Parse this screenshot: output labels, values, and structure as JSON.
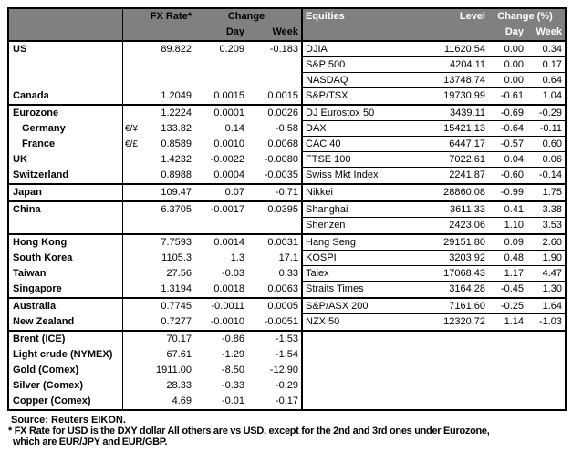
{
  "colors": {
    "header_bg": "#808080",
    "header_text_fx": "#000000",
    "header_text_equities": "#ffffff",
    "border": "#000000",
    "body_text": "#000000",
    "background": "#ffffff"
  },
  "fx_panel": {
    "header": {
      "rate": "FX Rate*",
      "change": "Change",
      "day": "Day",
      "week": "Week"
    },
    "sections": [
      {
        "rows": [
          {
            "label": "US",
            "pair": "",
            "rate": "89.822",
            "day": "0.209",
            "week": "-0.183"
          },
          {
            "label": "",
            "pair": "",
            "rate": "",
            "day": "",
            "week": ""
          },
          {
            "label": "",
            "pair": "",
            "rate": "",
            "day": "",
            "week": ""
          },
          {
            "label": "Canada",
            "pair": "",
            "rate": "1.2049",
            "day": "0.0015",
            "week": "0.0015"
          }
        ]
      },
      {
        "rows": [
          {
            "label": "Eurozone",
            "pair": "",
            "rate": "1.2224",
            "day": "0.0001",
            "week": "0.0026"
          },
          {
            "label": "Germany",
            "indent": true,
            "pair": "€/¥",
            "rate": "133.82",
            "day": "0.14",
            "week": "-0.58"
          },
          {
            "label": "France",
            "indent": true,
            "pair": "€/£",
            "rate": "0.8589",
            "day": "0.0010",
            "week": "0.0068"
          },
          {
            "label": "UK",
            "pair": "",
            "rate": "1.4232",
            "day": "-0.0022",
            "week": "-0.0080"
          },
          {
            "label": "Switzerland",
            "pair": "",
            "rate": "0.8988",
            "day": "0.0004",
            "week": "-0.0035"
          }
        ]
      },
      {
        "rows": [
          {
            "label": "Japan",
            "pair": "",
            "rate": "109.47",
            "day": "0.07",
            "week": "-0.71"
          }
        ]
      },
      {
        "rows": [
          {
            "label": "China",
            "pair": "",
            "rate": "6.3705",
            "day": "-0.0017",
            "week": "0.0395"
          },
          {
            "label": "",
            "pair": "",
            "rate": "",
            "day": "",
            "week": ""
          }
        ]
      },
      {
        "rows": [
          {
            "label": "Hong Kong",
            "pair": "",
            "rate": "7.7593",
            "day": "0.0014",
            "week": "0.0031"
          },
          {
            "label": "South Korea",
            "pair": "",
            "rate": "1105.3",
            "day": "1.3",
            "week": "17.1"
          },
          {
            "label": "Taiwan",
            "pair": "",
            "rate": "27.56",
            "day": "-0.03",
            "week": "0.33"
          },
          {
            "label": "Singapore",
            "pair": "",
            "rate": "1.3194",
            "day": "0.0018",
            "week": "0.0063"
          }
        ]
      },
      {
        "rows": [
          {
            "label": "Australia",
            "pair": "",
            "rate": "0.7745",
            "day": "-0.0011",
            "week": "0.0005"
          },
          {
            "label": "New Zealand",
            "pair": "",
            "rate": "0.7277",
            "day": "-0.0010",
            "week": "-0.0051"
          }
        ]
      },
      {
        "rows": [
          {
            "label": "Brent (ICE)",
            "pair": "",
            "rate": "70.17",
            "day": "-0.86",
            "week": "-1.53"
          },
          {
            "label": "Light crude (NYMEX)",
            "pair": "",
            "rate": "67.61",
            "day": "-1.29",
            "week": "-1.54"
          },
          {
            "label": "Gold (Comex)",
            "pair": "",
            "rate": "1911.00",
            "day": "-8.50",
            "week": "-12.90"
          },
          {
            "label": "Silver (Comex)",
            "pair": "",
            "rate": "28.33",
            "day": "-0.33",
            "week": "-0.29"
          },
          {
            "label": "Copper (Comex)",
            "pair": "",
            "rate": "4.69",
            "day": "-0.01",
            "week": "-0.17"
          }
        ]
      }
    ]
  },
  "equities_panel": {
    "header": {
      "name": "Equities",
      "level": "Level",
      "change": "Change (%)",
      "day": "Day",
      "week": "Week"
    },
    "sections": [
      {
        "rows": [
          {
            "name": "DJIA",
            "level": "11620.54",
            "day": "0.00",
            "week": "0.34"
          },
          {
            "name": "S&P 500",
            "level": "4204.11",
            "day": "0.00",
            "week": "0.17"
          },
          {
            "name": "NASDAQ",
            "level": "13748.74",
            "day": "0.00",
            "week": "0.64"
          },
          {
            "name": "S&P/TSX",
            "level": "19730.99",
            "day": "-0.61",
            "week": "1.04"
          }
        ]
      },
      {
        "rows": [
          {
            "name": "DJ Eurostox 50",
            "level": "3439.11",
            "day": "-0.69",
            "week": "-0.29"
          },
          {
            "name": "DAX",
            "level": "15421.13",
            "day": "-0.64",
            "week": "-0.11"
          },
          {
            "name": "CAC 40",
            "level": "6447.17",
            "day": "-0.57",
            "week": "0.60"
          },
          {
            "name": "FTSE 100",
            "level": "7022.61",
            "day": "0.04",
            "week": "0.06"
          },
          {
            "name": "Swiss Mkt Index",
            "level": "2241.87",
            "day": "-0.60",
            "week": "-0.14"
          }
        ]
      },
      {
        "rows": [
          {
            "name": "Nikkei",
            "level": "28860.08",
            "day": "-0.99",
            "week": "1.75"
          }
        ]
      },
      {
        "rows": [
          {
            "name": "Shanghai",
            "level": "3611.33",
            "day": "0.41",
            "week": "3.38"
          },
          {
            "name": "Shenzen",
            "level": "2423.06",
            "day": "1.10",
            "week": "3.53"
          }
        ]
      },
      {
        "rows": [
          {
            "name": "Hang Seng",
            "level": "29151.80",
            "day": "0.09",
            "week": "2.60"
          },
          {
            "name": "KOSPI",
            "level": "3203.92",
            "day": "0.48",
            "week": "1.90"
          },
          {
            "name": "Taiex",
            "level": "17068.43",
            "day": "1.17",
            "week": "4.47"
          },
          {
            "name": "Straits Times",
            "level": "3164.28",
            "day": "-0.45",
            "week": "1.30"
          }
        ]
      },
      {
        "rows": [
          {
            "name": "S&P/ASX  200",
            "level": "7161.60",
            "day": "-0.25",
            "week": "1.64"
          },
          {
            "name": "NZX 50",
            "level": "12320.72",
            "day": "1.14",
            "week": "-1.03"
          }
        ]
      },
      {
        "blank": true,
        "rows": [
          {
            "name": "",
            "level": "",
            "day": "",
            "week": ""
          },
          {
            "name": "",
            "level": "",
            "day": "",
            "week": ""
          },
          {
            "name": "",
            "level": "",
            "day": "",
            "week": ""
          },
          {
            "name": "",
            "level": "",
            "day": "",
            "week": ""
          },
          {
            "name": "",
            "level": "",
            "day": "",
            "week": ""
          }
        ]
      }
    ]
  },
  "footer": {
    "source": "Source:  Reuters EIKON.",
    "note_line1": "* FX Rate for USD is the DXY dollar  All others are vs USD, except for the 2nd and 3rd ones under Eurozone,",
    "note_line2": "which are EUR/JPY and EUR/GBP."
  }
}
